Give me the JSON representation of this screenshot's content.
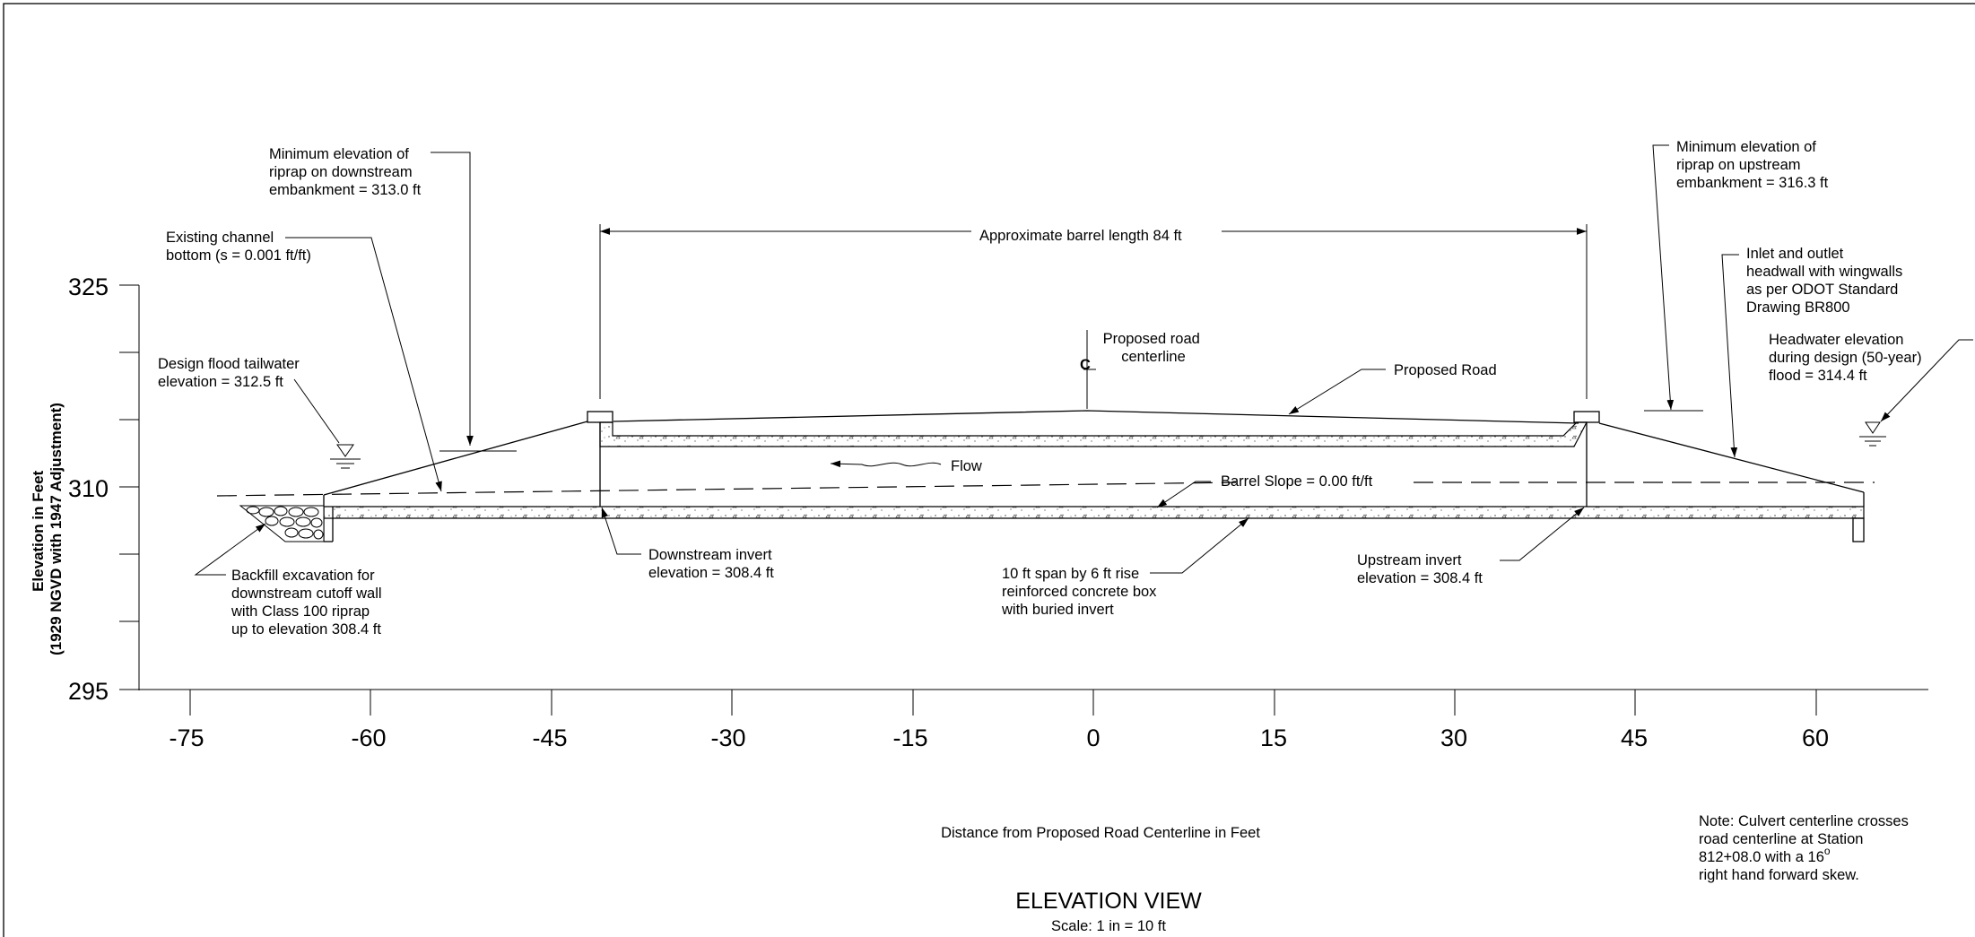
{
  "title": "ELEVATION VIEW",
  "scale": "Scale: 1 in = 10 ft",
  "x_axis_label": "Distance from Proposed Road Centerline in Feet",
  "y_axis_label": [
    "Elevation in Feet",
    "(1929 NGVD with 1947 Adjustment)"
  ],
  "x_ticks": [
    "-75",
    "-60",
    "-45",
    "-30",
    "-15",
    "0",
    "15",
    "30",
    "45",
    "60"
  ],
  "y_ticks": [
    "325",
    "310",
    "295"
  ],
  "centerline_symbol": "C",
  "annotations": {
    "riprap_downstream": [
      "Minimum elevation of",
      "riprap on downstream",
      "embankment = 313.0 ft"
    ],
    "riprap_upstream": [
      "Minimum elevation of",
      "riprap on upstream",
      "embankment = 316.3 ft"
    ],
    "channel_bottom": [
      "Existing channel",
      "bottom (s = 0.001 ft/ft)"
    ],
    "barrel_length": "Approximate barrel length  84 ft",
    "headwall": [
      "Inlet and outlet",
      "headwall with wingwalls",
      "as per ODOT Standard",
      "Drawing BR800"
    ],
    "road_centerline": [
      "Proposed road",
      "centerline"
    ],
    "proposed_road": "Proposed Road",
    "tailwater": [
      "Design flood tailwater",
      "elevation = 312.5 ft"
    ],
    "headwater": [
      "Headwater elevation",
      "during design (50-year)",
      "flood = 314.4 ft"
    ],
    "flow": "Flow",
    "barrel_slope": "Barrel Slope = 0.00 ft/ft",
    "backfill": [
      "Backfill excavation for",
      "downstream cutoff wall",
      "with Class 100 riprap",
      "up to elevation 308.4 ft"
    ],
    "downstream_invert": [
      "Downstream invert",
      "elevation = 308.4 ft"
    ],
    "box": [
      "10 ft span by 6 ft rise",
      "reinforced concrete box",
      "with buried invert"
    ],
    "upstream_invert": [
      "Upstream invert",
      "elevation = 308.4 ft"
    ],
    "note": [
      "Note:  Culvert centerline crosses",
      "road centerline at Station",
      "812+08.0 with a 16",
      "right hand forward skew."
    ],
    "note_superscript": "o"
  }
}
